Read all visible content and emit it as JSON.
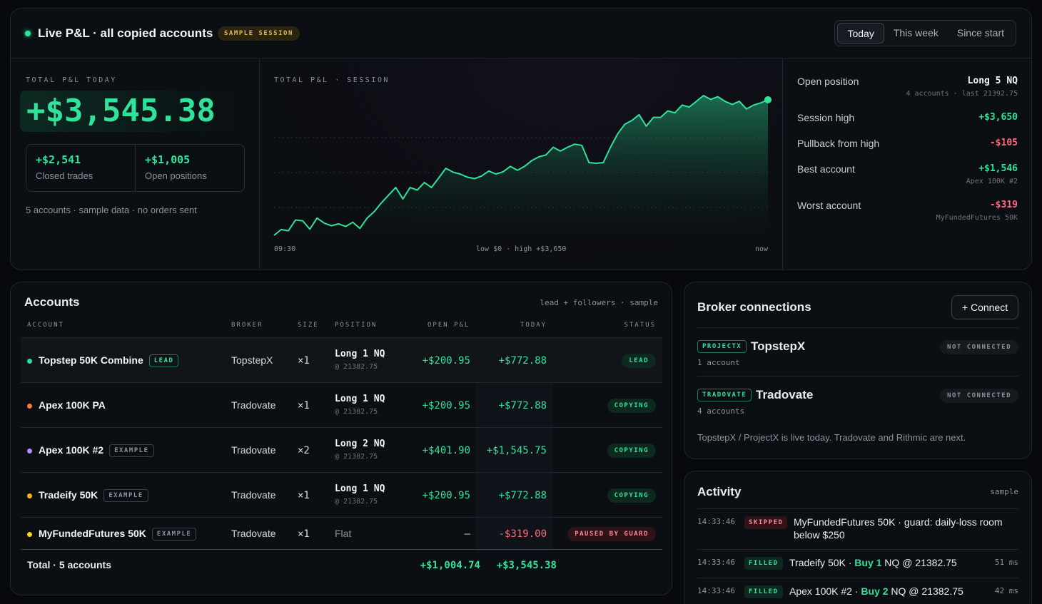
{
  "header": {
    "title": "Live P&L · all copied accounts",
    "badge": "SAMPLE SESSION",
    "ranges": [
      "Today",
      "This week",
      "Since start"
    ],
    "active_range": "Today"
  },
  "kpi": {
    "label": "TOTAL P&L TODAY",
    "total": "+$3,545.38",
    "closed_value": "+$2,541",
    "closed_label": "Closed trades",
    "open_value": "+$1,005",
    "open_label": "Open positions",
    "note": "5 accounts · sample data · no orders sent"
  },
  "session_chart": {
    "label": "TOTAL P&L · SESSION",
    "x_start": "09:30",
    "x_middle": "low $0 · high +$3,650",
    "x_end": "now"
  },
  "chart_data": {
    "type": "area",
    "title": "TOTAL P&L · SESSION",
    "x_range": [
      "09:30",
      "now"
    ],
    "ylim": [
      0,
      3650
    ],
    "values": [
      0,
      150,
      120,
      400,
      380,
      160,
      450,
      320,
      250,
      300,
      230,
      340,
      180,
      450,
      620,
      850,
      1050,
      1250,
      950,
      1250,
      1180,
      1380,
      1250,
      1500,
      1750,
      1650,
      1600,
      1520,
      1480,
      1550,
      1680,
      1600,
      1660,
      1800,
      1700,
      1800,
      1950,
      2050,
      2100,
      2300,
      2200,
      2300,
      2380,
      2350,
      1900,
      1880,
      1900,
      2300,
      2650,
      2900,
      3000,
      3150,
      2850,
      3080,
      3080,
      3250,
      3200,
      3400,
      3350,
      3500,
      3650,
      3550,
      3620,
      3500,
      3420,
      3500,
      3300,
      3400,
      3460,
      3540
    ]
  },
  "stats": {
    "open_position_label": "Open position",
    "open_position_value": "Long 5 NQ",
    "open_position_sub": "4 accounts · last 21392.75",
    "session_high_label": "Session high",
    "session_high_value": "+$3,650",
    "pullback_label": "Pullback from high",
    "pullback_value": "-$105",
    "best_label": "Best account",
    "best_value": "+$1,546",
    "best_sub": "Apex 100K #2",
    "worst_label": "Worst account",
    "worst_value": "-$319",
    "worst_sub": "MyFundedFutures 50K",
    "colors": {
      "positive": "#2fe39a",
      "negative": "#ff6b7a"
    }
  },
  "accounts": {
    "title": "Accounts",
    "meta": "lead + followers · sample",
    "columns": [
      "ACCOUNT",
      "BROKER",
      "SIZE",
      "POSITION",
      "OPEN P&L",
      "TODAY",
      "STATUS"
    ],
    "rows": [
      {
        "name": "Topstep 50K Combine",
        "tag": "LEAD",
        "dot": "#2fe39a",
        "broker": "TopstepX",
        "size": "×1",
        "position": "Long 1 NQ",
        "position_sub": "@ 21382.75",
        "open_pnl": "+$200.95",
        "today": "+$772.88",
        "status": "LEAD"
      },
      {
        "name": "Apex 100K PA",
        "tag": "",
        "dot": "#ff7a45",
        "broker": "Tradovate",
        "size": "×1",
        "position": "Long 1 NQ",
        "position_sub": "@ 21382.75",
        "open_pnl": "+$200.95",
        "today": "+$772.88",
        "status": "COPYING"
      },
      {
        "name": "Apex 100K #2",
        "tag": "EXAMPLE",
        "dot": "#b18cff",
        "broker": "Tradovate",
        "size": "×2",
        "position": "Long 2 NQ",
        "position_sub": "@ 21382.75",
        "open_pnl": "+$401.90",
        "today": "+$1,545.75",
        "status": "COPYING"
      },
      {
        "name": "Tradeify 50K",
        "tag": "EXAMPLE",
        "dot": "#ffb020",
        "broker": "Tradovate",
        "size": "×1",
        "position": "Long 1 NQ",
        "position_sub": "@ 21382.75",
        "open_pnl": "+$200.95",
        "today": "+$772.88",
        "status": "COPYING"
      },
      {
        "name": "MyFundedFutures 50K",
        "tag": "EXAMPLE",
        "dot": "#ffd21f",
        "broker": "Tradovate",
        "size": "×1",
        "position": "Flat",
        "position_sub": "",
        "open_pnl": "—",
        "today": "-$319.00",
        "status": "PAUSED BY GUARD"
      }
    ],
    "total_label": "Total · 5 accounts",
    "total_open": "+$1,004.74",
    "total_today": "+$3,545.38"
  },
  "broker": {
    "title": "Broker connections",
    "connect_label": "+ Connect",
    "items": [
      {
        "tag": "PROJECTX",
        "name": "TopstepX",
        "sub": "1 account",
        "status": "NOT CONNECTED"
      },
      {
        "tag": "TRADOVATE",
        "name": "Tradovate",
        "sub": "4 accounts",
        "status": "NOT CONNECTED"
      }
    ],
    "note": "TopstepX / ProjectX is live today. Tradovate and Rithmic are next."
  },
  "activity": {
    "title": "Activity",
    "meta": "sample",
    "items": [
      {
        "time": "14:33:46",
        "tag": "SKIPPED",
        "text": "MyFundedFutures 50K · guard: daily-loss room below $250",
        "ms": ""
      },
      {
        "time": "14:33:46",
        "tag": "FILLED",
        "pre": "Tradeify 50K · ",
        "buy": "Buy 1",
        "post": " NQ @ 21382.75",
        "ms": "51 ms"
      },
      {
        "time": "14:33:46",
        "tag": "FILLED",
        "pre": "Apex 100K #2 · ",
        "buy": "Buy 2",
        "post": " NQ @ 21382.75",
        "ms": "42 ms"
      }
    ]
  }
}
